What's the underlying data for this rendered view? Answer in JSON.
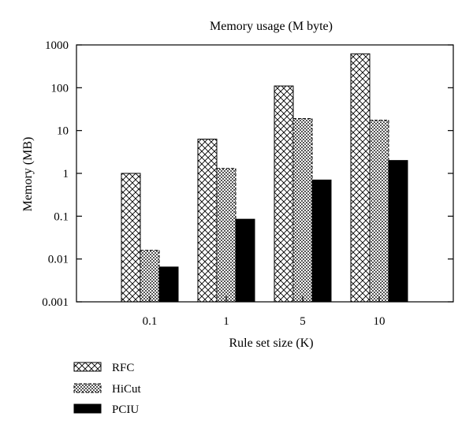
{
  "chart_data": {
    "type": "bar",
    "title": "Memory usage (M byte)",
    "xlabel": "Rule set size (K)",
    "ylabel": "Memory (MB)",
    "yscale": "log",
    "ylim": [
      0.001,
      1000
    ],
    "y_ticks": [
      "0.001",
      "0.01",
      "0.1",
      "1",
      "10",
      "100",
      "1000"
    ],
    "categories": [
      "0.1",
      "1",
      "5",
      "10"
    ],
    "series": [
      {
        "name": "RFC",
        "pattern": "cross-hatch",
        "color": "#000000",
        "values": [
          1.0,
          6.3,
          110,
          620
        ]
      },
      {
        "name": "HiCut",
        "pattern": "dense-checker",
        "color": "#000000",
        "values": [
          0.016,
          1.3,
          19,
          17.5
        ]
      },
      {
        "name": "PCIU",
        "pattern": "solid",
        "color": "#000000",
        "values": [
          0.0065,
          0.085,
          0.7,
          2.0
        ]
      }
    ],
    "legend_position": "bottom-left"
  }
}
